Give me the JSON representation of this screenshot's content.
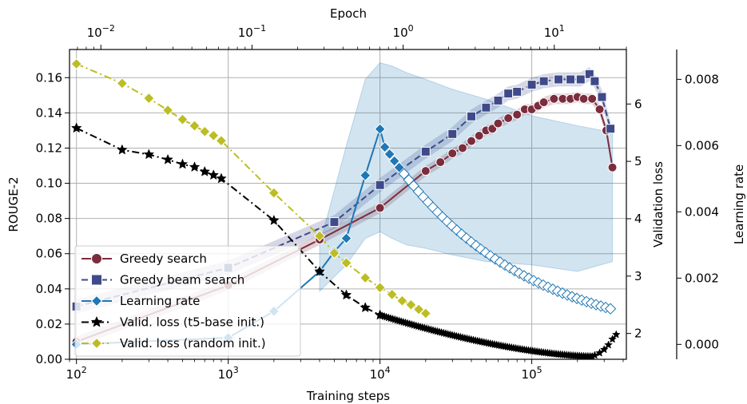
{
  "chart_data": {
    "type": "line",
    "xlabel": "Training steps",
    "top_xlabel": "Epoch",
    "ylabel_left": "ROUGE-2",
    "ylabel_right1": "Validation loss",
    "ylabel_right2": "Learning rate",
    "x_scale": "log",
    "xlim": [
      90,
      420000
    ],
    "ylim_left": [
      0.0,
      0.176
    ],
    "ylim_valloss": [
      1.55,
      6.95
    ],
    "ylim_lr": [
      -0.00045,
      0.0089
    ],
    "top_xlim": [
      0.0062,
      30
    ],
    "grid": true,
    "legend_location": "lower-left",
    "x_ticks": [
      {
        "value": 100,
        "base": "10",
        "exp": "2"
      },
      {
        "value": 1000,
        "base": "10",
        "exp": "3"
      },
      {
        "value": 10000,
        "base": "10",
        "exp": "4"
      },
      {
        "value": 100000,
        "base": "10",
        "exp": "5"
      }
    ],
    "top_ticks": [
      {
        "value": 0.01,
        "base": "10",
        "exp": "−2"
      },
      {
        "value": 0.1,
        "base": "10",
        "exp": "−1"
      },
      {
        "value": 1,
        "base": "10",
        "exp": "0"
      },
      {
        "value": 10,
        "base": "10",
        "exp": "1"
      }
    ],
    "y_left_ticks": [
      "0.00",
      "0.02",
      "0.04",
      "0.06",
      "0.08",
      "0.10",
      "0.12",
      "0.14",
      "0.16"
    ],
    "y_valloss_ticks": [
      "2",
      "3",
      "4",
      "5",
      "6"
    ],
    "y_lr_ticks": [
      "0.000",
      "0.002",
      "0.004",
      "0.006",
      "0.008"
    ],
    "series": [
      {
        "name": "Greedy search",
        "axis": "rouge",
        "color": "#7b2d3e",
        "marker": "circle",
        "linestyle": "solid",
        "x": [
          100,
          1000,
          4000,
          10000,
          20000,
          25000,
          30000,
          35000,
          40000,
          45000,
          50000,
          55000,
          60000,
          70000,
          80000,
          90000,
          100000,
          110000,
          120000,
          140000,
          160000,
          180000,
          200000,
          220000,
          250000,
          280000,
          310000,
          340000
        ],
        "y": [
          0.01,
          0.042,
          0.068,
          0.086,
          0.107,
          0.112,
          0.117,
          0.12,
          0.124,
          0.127,
          0.13,
          0.131,
          0.134,
          0.137,
          0.139,
          0.142,
          0.142,
          0.144,
          0.146,
          0.148,
          0.148,
          0.148,
          0.149,
          0.148,
          0.148,
          0.142,
          0.13,
          0.109
        ],
        "band_halfwidth": 0.003
      },
      {
        "name": "Greedy beam search",
        "axis": "rouge",
        "color": "#3f4a8a",
        "marker": "square",
        "linestyle": "dashed",
        "x": [
          100,
          1000,
          5000,
          10000,
          20000,
          30000,
          40000,
          50000,
          60000,
          70000,
          80000,
          100000,
          120000,
          150000,
          180000,
          210000,
          240000,
          260000,
          290000,
          330000
        ],
        "y": [
          0.03,
          0.052,
          0.078,
          0.099,
          0.118,
          0.128,
          0.138,
          0.143,
          0.147,
          0.151,
          0.152,
          0.156,
          0.158,
          0.159,
          0.159,
          0.159,
          0.162,
          0.158,
          0.149,
          0.131
        ],
        "band_halfwidth": 0.004
      },
      {
        "name": "Learning rate",
        "axis": "lr",
        "color": "#1f77b4",
        "marker": "diamond",
        "linestyle": "solid",
        "x": [
          100,
          1000,
          2000,
          4000,
          5000,
          6000,
          8000,
          10000
        ],
        "y": [
          0.0,
          0.0002,
          0.001,
          0.0022,
          0.0028,
          0.0032,
          0.0051,
          0.0065
        ],
        "decay": {
          "from": 10000,
          "to": 330000,
          "count": 48,
          "exponent": -0.5
        },
        "band": {
          "x": [
            4000,
            6000,
            8000,
            10000,
            12000,
            15000,
            20000,
            30000,
            50000,
            100000,
            200000,
            340000
          ],
          "lower": [
            0.0016,
            0.0024,
            0.0032,
            0.0034,
            0.0032,
            0.003,
            0.0029,
            0.0027,
            0.0025,
            0.0024,
            0.0022,
            0.0025
          ],
          "upper": [
            0.003,
            0.006,
            0.008,
            0.0085,
            0.0084,
            0.0082,
            0.008,
            0.0077,
            0.0074,
            0.0069,
            0.0066,
            0.0064
          ]
        }
      },
      {
        "name": "Valid. loss (t5-base init.)",
        "axis": "valloss",
        "color": "#000000",
        "marker": "star",
        "linestyle": "dashdot",
        "x": [
          100,
          200,
          300,
          400,
          500,
          600,
          700,
          800,
          900,
          2000,
          4000,
          6000,
          8000,
          10000
        ],
        "y": [
          5.58,
          5.2,
          5.12,
          5.03,
          4.95,
          4.9,
          4.82,
          4.76,
          4.7,
          3.97,
          3.08,
          2.67,
          2.45,
          2.32
        ],
        "dense": {
          "from": 10000,
          "to": 250000,
          "count": 100,
          "y_from": 2.32,
          "y_to": 1.6
        },
        "tail": {
          "x": [
            260000,
            280000,
            300000,
            320000,
            340000,
            360000
          ],
          "y": [
            1.62,
            1.66,
            1.72,
            1.8,
            1.9,
            1.98
          ]
        }
      },
      {
        "name": "Valid. loss (random init.)",
        "axis": "valloss",
        "color": "#bcbd22",
        "marker": "diamond",
        "linestyle": "dashdot",
        "x": [
          100,
          200,
          300,
          400,
          500,
          600,
          700,
          800,
          900,
          2000,
          4000,
          5000,
          6000,
          8000,
          10000,
          12000,
          14000,
          16000,
          18000,
          20000
        ],
        "y": [
          6.7,
          6.36,
          6.1,
          5.89,
          5.73,
          5.62,
          5.52,
          5.45,
          5.36,
          4.45,
          3.7,
          3.4,
          3.23,
          2.97,
          2.8,
          2.68,
          2.57,
          2.5,
          2.42,
          2.35
        ]
      }
    ]
  }
}
